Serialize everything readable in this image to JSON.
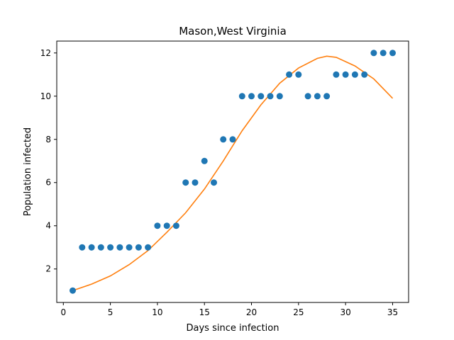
{
  "chart_data": {
    "type": "scatter",
    "title": "Mason,West Virginia",
    "xlabel": "Days since infection",
    "ylabel": "Population infected",
    "xlim": [
      -0.7,
      36.7
    ],
    "ylim": [
      0.45,
      12.55
    ],
    "xticks": [
      0,
      5,
      10,
      15,
      20,
      25,
      30,
      35
    ],
    "yticks": [
      2,
      4,
      6,
      8,
      10,
      12
    ],
    "grid": false,
    "series": [
      {
        "kind": "scatter",
        "color": "#1f77b4",
        "points": [
          [
            1,
            1
          ],
          [
            2,
            3
          ],
          [
            3,
            3
          ],
          [
            4,
            3
          ],
          [
            5,
            3
          ],
          [
            6,
            3
          ],
          [
            7,
            3
          ],
          [
            8,
            3
          ],
          [
            9,
            3
          ],
          [
            10,
            4
          ],
          [
            11,
            4
          ],
          [
            12,
            4
          ],
          [
            13,
            6
          ],
          [
            14,
            6
          ],
          [
            15,
            7
          ],
          [
            16,
            6
          ],
          [
            17,
            8
          ],
          [
            18,
            8
          ],
          [
            19,
            10
          ],
          [
            20,
            10
          ],
          [
            21,
            10
          ],
          [
            22,
            10
          ],
          [
            23,
            10
          ],
          [
            24,
            11
          ],
          [
            25,
            11
          ],
          [
            26,
            10
          ],
          [
            27,
            10
          ],
          [
            28,
            10
          ],
          [
            29,
            11
          ],
          [
            30,
            11
          ],
          [
            31,
            11
          ],
          [
            32,
            11
          ],
          [
            33,
            12
          ],
          [
            34,
            12
          ],
          [
            35,
            12
          ]
        ]
      },
      {
        "kind": "line",
        "color": "#ff7f0e",
        "points": [
          [
            1,
            1.0
          ],
          [
            3,
            1.3
          ],
          [
            5,
            1.68
          ],
          [
            7,
            2.2
          ],
          [
            9,
            2.85
          ],
          [
            11,
            3.7
          ],
          [
            13,
            4.6
          ],
          [
            15,
            5.7
          ],
          [
            17,
            7.0
          ],
          [
            19,
            8.4
          ],
          [
            21,
            9.6
          ],
          [
            23,
            10.6
          ],
          [
            25,
            11.3
          ],
          [
            27,
            11.75
          ],
          [
            28,
            11.85
          ],
          [
            29,
            11.8
          ],
          [
            31,
            11.4
          ],
          [
            33,
            10.8
          ],
          [
            35,
            9.9
          ]
        ]
      }
    ]
  }
}
